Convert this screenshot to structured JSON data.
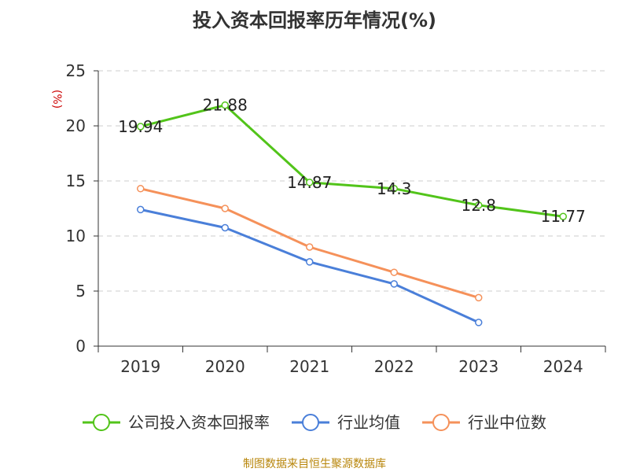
{
  "chart_data": {
    "type": "line",
    "title": "投入资本回报率历年情况(%)",
    "ylabel": "(%)",
    "xlabel": "",
    "categories": [
      "2019",
      "2020",
      "2021",
      "2022",
      "2023",
      "2024"
    ],
    "ylim": [
      0,
      25
    ],
    "yticks": [
      0,
      5,
      10,
      15,
      20,
      25
    ],
    "grid": true,
    "legend_position": "bottom",
    "series": [
      {
        "name": "公司投入资本回报率",
        "color": "#52c41a",
        "values": [
          19.94,
          21.88,
          14.87,
          14.3,
          12.8,
          11.77
        ],
        "labels": [
          "19.94",
          "21.88",
          "14.87",
          "14.3",
          "12.8",
          "11.77"
        ]
      },
      {
        "name": "行业均值",
        "color": "#4a7fd9",
        "values": [
          12.4,
          10.75,
          7.65,
          5.65,
          2.15,
          null
        ]
      },
      {
        "name": "行业中位数",
        "color": "#f5915a",
        "values": [
          14.3,
          12.5,
          9.0,
          6.7,
          4.4,
          null
        ]
      }
    ]
  },
  "source": "制图数据来自恒生聚源数据库"
}
